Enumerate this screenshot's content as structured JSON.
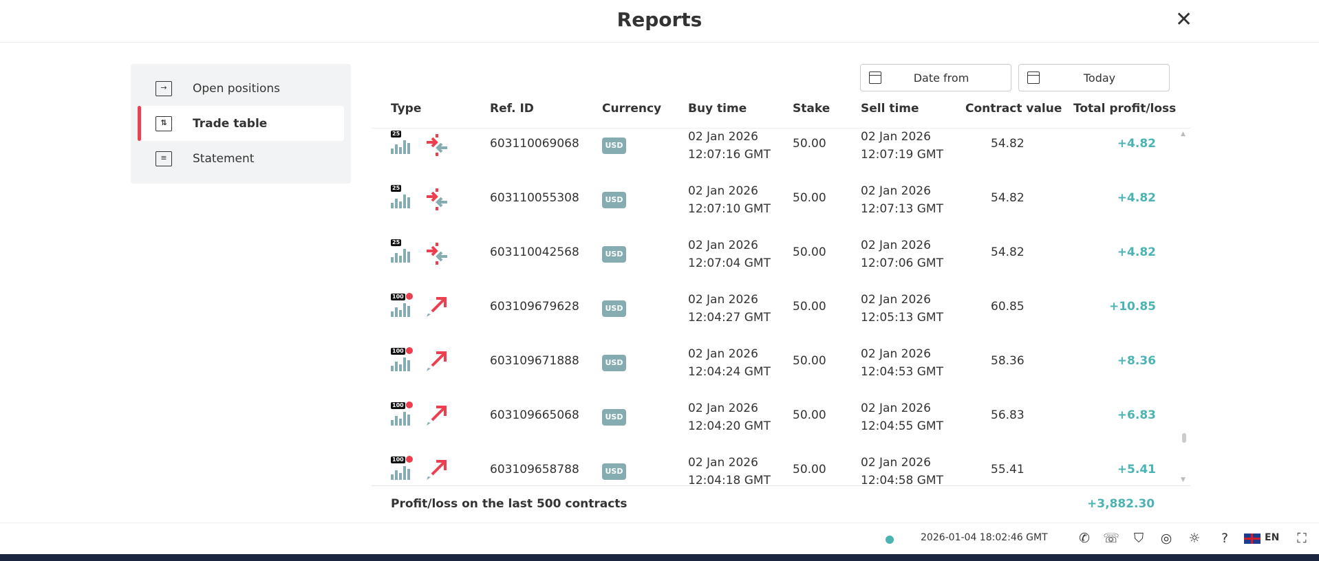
{
  "header": {
    "title": "Reports",
    "close_icon": "close-icon"
  },
  "sidebar": {
    "items": [
      {
        "label": "Open positions",
        "icon": "open-positions-icon",
        "active": false
      },
      {
        "label": "Trade table",
        "icon": "trade-table-icon",
        "active": true
      },
      {
        "label": "Statement",
        "icon": "statement-icon",
        "active": false
      }
    ]
  },
  "filters": {
    "date_from": "Date from",
    "date_to": "Today"
  },
  "table": {
    "columns": [
      "Type",
      "Ref. ID",
      "Currency",
      "Buy time",
      "Stake",
      "Sell time",
      "Contract value",
      "Total profit/loss"
    ],
    "rows": [
      {
        "badge": "25",
        "type": "accumulator",
        "ref": "603110069068",
        "currency": "USD",
        "buy_date": "02 Jan 2026",
        "buy_time": "12:07:16 GMT",
        "stake": "50.00",
        "sell_date": "02 Jan 2026",
        "sell_time": "12:07:19 GMT",
        "value": "54.82",
        "pl": "+4.82"
      },
      {
        "badge": "25",
        "type": "accumulator",
        "ref": "603110055308",
        "currency": "USD",
        "buy_date": "02 Jan 2026",
        "buy_time": "12:07:10 GMT",
        "stake": "50.00",
        "sell_date": "02 Jan 2026",
        "sell_time": "12:07:13 GMT",
        "value": "54.82",
        "pl": "+4.82"
      },
      {
        "badge": "25",
        "type": "accumulator",
        "ref": "603110042568",
        "currency": "USD",
        "buy_date": "02 Jan 2026",
        "buy_time": "12:07:04 GMT",
        "stake": "50.00",
        "sell_date": "02 Jan 2026",
        "sell_time": "12:07:06 GMT",
        "value": "54.82",
        "pl": "+4.82"
      },
      {
        "badge": "100",
        "type": "multiplier-up",
        "ref": "603109679628",
        "currency": "USD",
        "buy_date": "02 Jan 2026",
        "buy_time": "12:04:27 GMT",
        "stake": "50.00",
        "sell_date": "02 Jan 2026",
        "sell_time": "12:05:13 GMT",
        "value": "60.85",
        "pl": "+10.85"
      },
      {
        "badge": "100",
        "type": "multiplier-up",
        "ref": "603109671888",
        "currency": "USD",
        "buy_date": "02 Jan 2026",
        "buy_time": "12:04:24 GMT",
        "stake": "50.00",
        "sell_date": "02 Jan 2026",
        "sell_time": "12:04:53 GMT",
        "value": "58.36",
        "pl": "+8.36"
      },
      {
        "badge": "100",
        "type": "multiplier-up",
        "ref": "603109665068",
        "currency": "USD",
        "buy_date": "02 Jan 2026",
        "buy_time": "12:04:20 GMT",
        "stake": "50.00",
        "sell_date": "02 Jan 2026",
        "sell_time": "12:04:55 GMT",
        "value": "56.83",
        "pl": "+6.83"
      },
      {
        "badge": "100",
        "type": "multiplier-up",
        "ref": "603109658788",
        "currency": "USD",
        "buy_date": "02 Jan 2026",
        "buy_time": "12:04:18 GMT",
        "stake": "50.00",
        "sell_date": "02 Jan 2026",
        "sell_time": "12:04:58 GMT",
        "value": "55.41",
        "pl": "+5.41"
      }
    ]
  },
  "summary": {
    "label": "Profit/loss on the last 500 contracts",
    "value": "+3,882.30"
  },
  "statusbar": {
    "clock": "2026-01-04 18:02:46 GMT",
    "language": "EN",
    "icons": [
      "whatsapp-icon",
      "chat-icon",
      "shield-icon",
      "gauge-icon",
      "theme-icon",
      "help-icon",
      "fullscreen-icon"
    ]
  },
  "colors": {
    "accent": "#ec3f4f",
    "profit": "#4bb4b3",
    "badge": "#85acb0"
  }
}
